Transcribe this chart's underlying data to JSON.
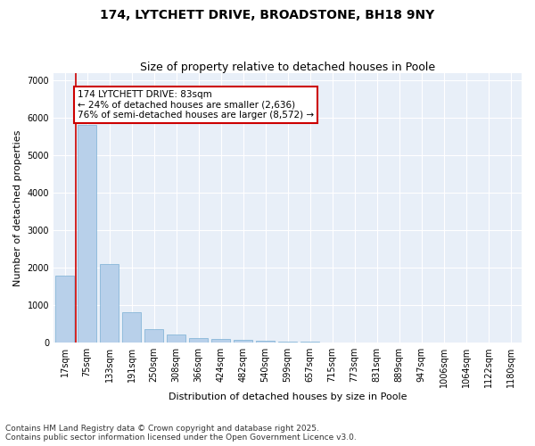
{
  "title": "174, LYTCHETT DRIVE, BROADSTONE, BH18 9NY",
  "subtitle": "Size of property relative to detached houses in Poole",
  "xlabel": "Distribution of detached houses by size in Poole",
  "ylabel": "Number of detached properties",
  "categories": [
    "17sqm",
    "75sqm",
    "133sqm",
    "191sqm",
    "250sqm",
    "308sqm",
    "366sqm",
    "424sqm",
    "482sqm",
    "540sqm",
    "599sqm",
    "657sqm",
    "715sqm",
    "773sqm",
    "831sqm",
    "889sqm",
    "947sqm",
    "1006sqm",
    "1064sqm",
    "1122sqm",
    "1180sqm"
  ],
  "values": [
    1780,
    5820,
    2090,
    810,
    360,
    210,
    120,
    100,
    70,
    50,
    30,
    15,
    8,
    5,
    3,
    2,
    1,
    1,
    0,
    0,
    0
  ],
  "bar_color": "#b8d0ea",
  "bar_edge_color": "#7aafd4",
  "vline_color": "#cc0000",
  "vline_x": 0.5,
  "annotation_text": "174 LYTCHETT DRIVE: 83sqm\n← 24% of detached houses are smaller (2,636)\n76% of semi-detached houses are larger (8,572) →",
  "annotation_box_color": "#cc0000",
  "ylim": [
    0,
    7200
  ],
  "yticks": [
    0,
    1000,
    2000,
    3000,
    4000,
    5000,
    6000,
    7000
  ],
  "bg_color": "#e8eff8",
  "grid_color": "#ffffff",
  "footer": "Contains HM Land Registry data © Crown copyright and database right 2025.\nContains public sector information licensed under the Open Government Licence v3.0.",
  "title_fontsize": 10,
  "subtitle_fontsize": 9,
  "xlabel_fontsize": 8,
  "ylabel_fontsize": 8,
  "tick_fontsize": 7,
  "annotation_fontsize": 7.5,
  "footer_fontsize": 6.5
}
